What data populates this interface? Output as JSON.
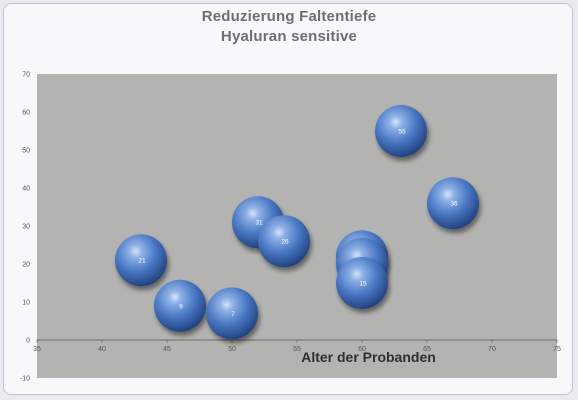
{
  "chart_data": {
    "type": "bubble",
    "title": "Reduzierung Faltentiefe",
    "subtitle": "Hyaluran sensitive",
    "xlabel": "Alter der Probanden",
    "ylabel": "",
    "xlim": [
      35,
      75
    ],
    "ylim": [
      -10,
      70
    ],
    "xticks": [
      "35",
      "40",
      "45",
      "50",
      "55",
      "60",
      "65",
      "70",
      "75"
    ],
    "yticks": [
      "-10",
      "0",
      "10",
      "20",
      "30",
      "40",
      "50",
      "60",
      "70"
    ],
    "grid": false,
    "points": [
      {
        "x": 43,
        "y": 21,
        "label": "21"
      },
      {
        "x": 46,
        "y": 9,
        "label": "9"
      },
      {
        "x": 50,
        "y": 7,
        "label": "7"
      },
      {
        "x": 52,
        "y": 31,
        "label": "31"
      },
      {
        "x": 54,
        "y": 26,
        "label": "26"
      },
      {
        "x": 60,
        "y": 22,
        "label": "22"
      },
      {
        "x": 60,
        "y": 20,
        "label": "20"
      },
      {
        "x": 60,
        "y": 15,
        "label": "15"
      },
      {
        "x": 63,
        "y": 55,
        "label": "55"
      },
      {
        "x": 67,
        "y": 36,
        "label": "36"
      }
    ],
    "colors": {
      "plot_bg": "#b3b3b1",
      "bubble": "#4a78c4",
      "bubble_dark": "#23478a",
      "bubble_light": "#c9dcf5"
    }
  }
}
